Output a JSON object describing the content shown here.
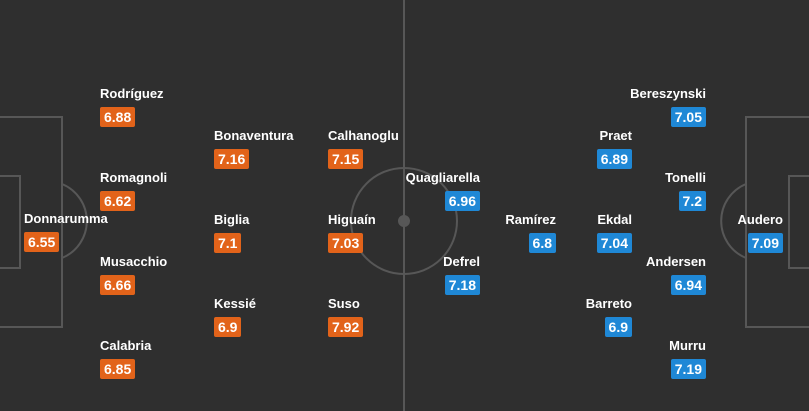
{
  "home": {
    "players": [
      {
        "name": "Donnarumma",
        "rating": 6.55
      },
      {
        "name": "Rodríguez",
        "rating": 6.88
      },
      {
        "name": "Romagnoli",
        "rating": 6.62
      },
      {
        "name": "Musacchio",
        "rating": 6.66
      },
      {
        "name": "Calabria",
        "rating": 6.85
      },
      {
        "name": "Bonaventura",
        "rating": 7.16
      },
      {
        "name": "Biglia",
        "rating": 7.1
      },
      {
        "name": "Kessié",
        "rating": 6.9
      },
      {
        "name": "Calhanoglu",
        "rating": 7.15
      },
      {
        "name": "Higuaín",
        "rating": 7.03
      },
      {
        "name": "Suso",
        "rating": 7.92
      }
    ]
  },
  "away": {
    "players": [
      {
        "name": "Audero",
        "rating": 7.09
      },
      {
        "name": "Bereszynski",
        "rating": 7.05
      },
      {
        "name": "Tonelli",
        "rating": 7.2
      },
      {
        "name": "Andersen",
        "rating": 6.94
      },
      {
        "name": "Murru",
        "rating": 7.19
      },
      {
        "name": "Praet",
        "rating": 6.89
      },
      {
        "name": "Ekdal",
        "rating": 7.04
      },
      {
        "name": "Barreto",
        "rating": 6.9
      },
      {
        "name": "Ramírez",
        "rating": 6.8
      },
      {
        "name": "Quagliarella",
        "rating": 6.96
      },
      {
        "name": "Defrel",
        "rating": 7.18
      }
    ]
  }
}
